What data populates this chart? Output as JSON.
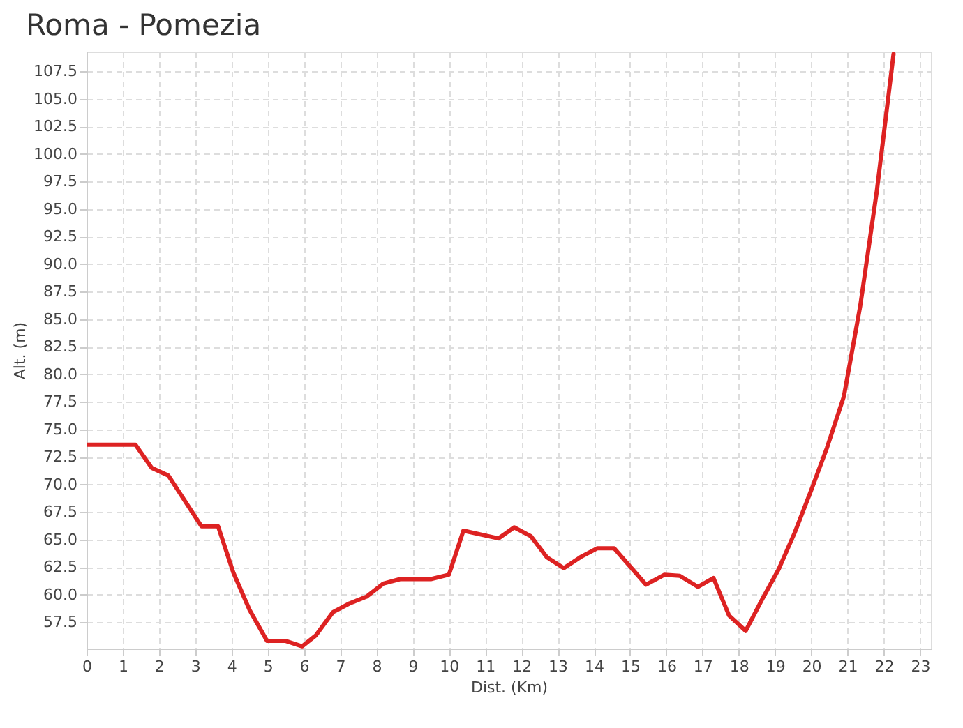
{
  "chart_data": {
    "type": "line",
    "title": "Roma - Pomezia",
    "xlabel": "Dist. (Km)",
    "ylabel": "Alt. (m)",
    "x": [
      0,
      1.35,
      1.8,
      2.26,
      3.17,
      3.63,
      4.05,
      4.5,
      4.98,
      5.48,
      5.95,
      6.33,
      6.8,
      7.26,
      7.72,
      8.19,
      8.65,
      9.5,
      10.0,
      10.4,
      11.37,
      11.8,
      12.26,
      12.7,
      13.17,
      13.63,
      14.09,
      14.56,
      15.44,
      15.95,
      16.37,
      16.87,
      17.3,
      17.73,
      18.19,
      18.65,
      19.1,
      19.54,
      20.0,
      20.43,
      20.9,
      21.35,
      21.81,
      22.27
    ],
    "series": [
      {
        "color": "#dd2222",
        "values": [
          73.6,
          73.6,
          71.5,
          70.8,
          66.2,
          66.2,
          62.0,
          58.6,
          55.8,
          55.8,
          55.3,
          56.3,
          58.4,
          59.2,
          59.8,
          61.0,
          61.4,
          61.4,
          61.8,
          65.8,
          65.1,
          66.1,
          65.3,
          63.4,
          62.4,
          63.4,
          64.2,
          64.2,
          60.9,
          61.8,
          61.7,
          60.7,
          61.5,
          58.1,
          56.7,
          59.6,
          62.3,
          65.6,
          69.5,
          73.3,
          78.0,
          86.2,
          96.7,
          109.1
        ]
      }
    ],
    "xlim": [
      0,
      23.3
    ],
    "xticks": [
      0,
      1,
      2,
      3,
      4,
      5,
      6,
      7,
      8,
      9,
      10,
      11,
      12,
      13,
      14,
      15,
      16,
      17,
      18,
      19,
      20,
      21,
      22,
      23
    ],
    "ylim": [
      55.1,
      109.3
    ],
    "yticks": [
      57.5,
      {
        "value": 60,
        "label": "60.0"
      },
      62.5,
      {
        "value": 65,
        "label": "65.0"
      },
      67.5,
      {
        "value": 70,
        "label": "70.0"
      },
      72.5,
      {
        "value": 75,
        "label": "75.0"
      },
      77.5,
      {
        "value": 80,
        "label": "80.0"
      },
      82.5,
      {
        "value": 85,
        "label": "85.0"
      },
      87.5,
      {
        "value": 90,
        "label": "90.0"
      },
      92.5,
      {
        "value": 95,
        "label": "95.0"
      },
      97.5,
      {
        "value": 100,
        "label": "100.0"
      },
      102.5,
      {
        "value": 105,
        "label": "105.0"
      },
      107.5
    ],
    "grid": true,
    "marker": "none",
    "line_style": "solid"
  }
}
